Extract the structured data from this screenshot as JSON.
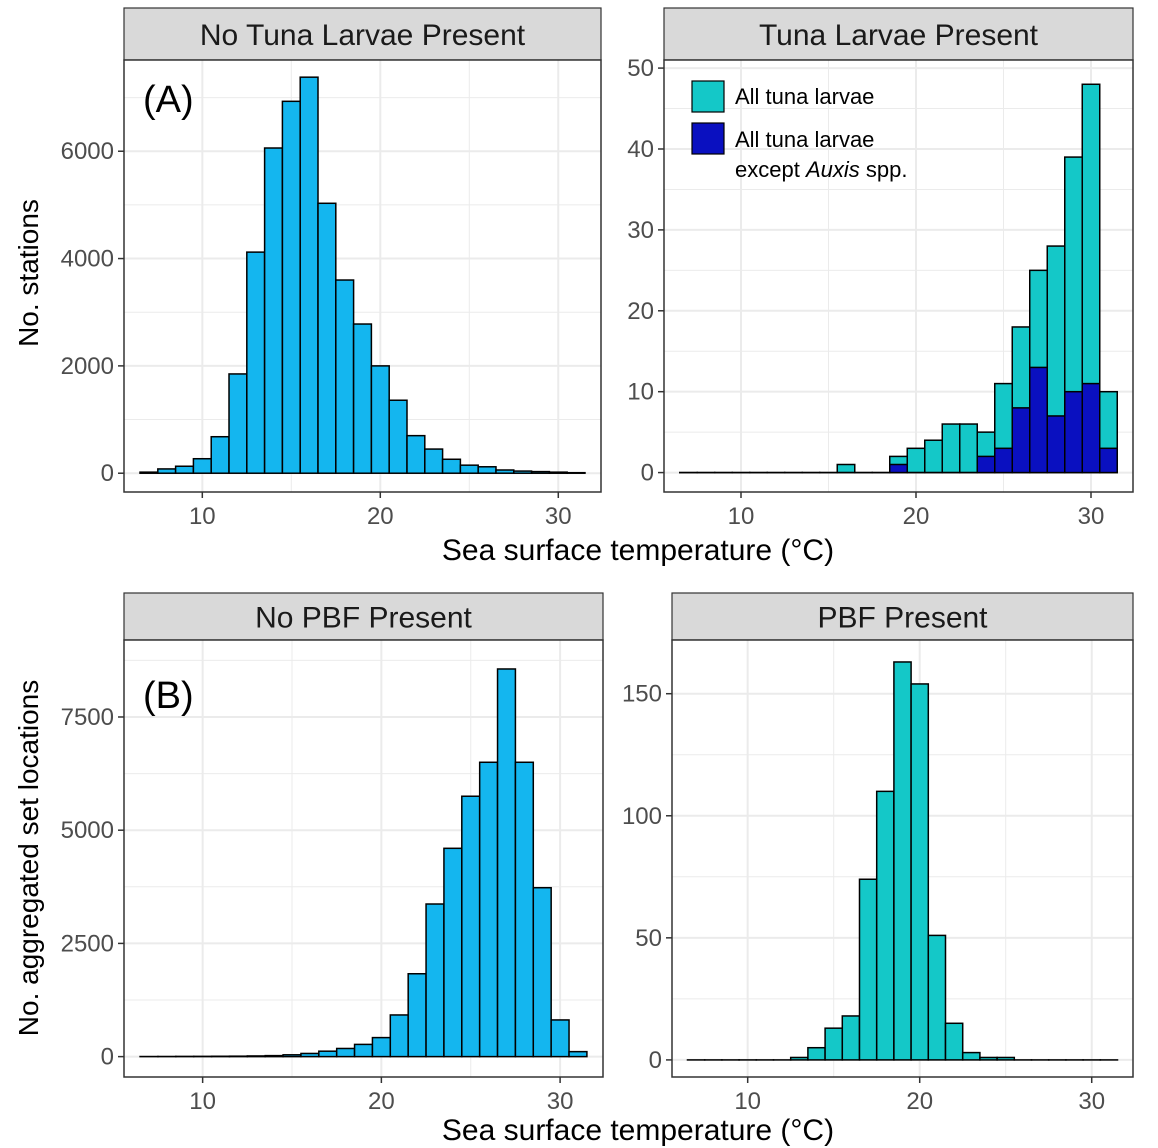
{
  "figure": {
    "colors": {
      "bar_blue": "#14b6ef",
      "bar_teal": "#14c8c8",
      "bar_navy": "#0a10c0",
      "strip_bg": "#d9d9d9",
      "grid": "#ebebeb",
      "axis_text": "#4d4d4d"
    },
    "row_a": {
      "panel_letter": "(A)",
      "ylabel": "No. stations",
      "xlabel": "Sea surface temperature (°C)"
    },
    "row_b": {
      "panel_letter": "(B)",
      "ylabel": "No. aggregated set locations",
      "xlabel": "Sea surface temperature (°C)"
    }
  },
  "chart_data": [
    {
      "id": "a_left",
      "type": "bar",
      "title": "No Tuna Larvae Present",
      "xlabel": "Sea surface temperature (°C)",
      "ylabel": "No. stations",
      "bin_width": 1,
      "x": [
        7,
        8,
        9,
        10,
        11,
        12,
        13,
        14,
        15,
        16,
        17,
        18,
        19,
        20,
        21,
        22,
        23,
        24,
        25,
        26,
        27,
        28,
        29,
        30,
        31
      ],
      "series": [
        {
          "color": "#14b6ef",
          "values": [
            20,
            80,
            130,
            270,
            680,
            1850,
            4120,
            6060,
            6930,
            7380,
            5030,
            3600,
            2780,
            2000,
            1360,
            700,
            450,
            260,
            150,
            120,
            60,
            40,
            30,
            20,
            10
          ]
        }
      ],
      "xlim": [
        5.6,
        32.4
      ],
      "ylim": [
        -350,
        7700
      ],
      "xticks": [
        10,
        20,
        30
      ],
      "yticks": [
        0,
        2000,
        4000,
        6000
      ],
      "grid": true
    },
    {
      "id": "a_right",
      "type": "bar",
      "title": "Tuna Larvae Present",
      "xlabel": "Sea surface temperature (°C)",
      "bin_width": 1,
      "x": [
        7,
        8,
        9,
        10,
        11,
        12,
        13,
        14,
        15,
        16,
        17,
        18,
        19,
        20,
        21,
        22,
        23,
        24,
        25,
        26,
        27,
        28,
        29,
        30,
        31
      ],
      "series": [
        {
          "name": "All tuna larvae",
          "color": "#14c8c8",
          "values": [
            0,
            0,
            0,
            0,
            0,
            0,
            0,
            0,
            0,
            1,
            0,
            0,
            2,
            3,
            4,
            6,
            6,
            5,
            11,
            18,
            25,
            28,
            39,
            48,
            10
          ]
        },
        {
          "name_parts": [
            "All tuna larvae",
            "except ",
            "Auxis",
            " spp."
          ],
          "color": "#0a10c0",
          "values": [
            0,
            0,
            0,
            0,
            0,
            0,
            0,
            0,
            0,
            0,
            0,
            0,
            1,
            0,
            0,
            0,
            0,
            2,
            3,
            8,
            13,
            7,
            10,
            11,
            3
          ]
        }
      ],
      "legend": {
        "position": "top-left",
        "title": ""
      },
      "xlim": [
        5.6,
        32.4
      ],
      "ylim": [
        -2.4,
        51
      ],
      "xticks": [
        10,
        20,
        30
      ],
      "yticks": [
        0,
        10,
        20,
        30,
        40,
        50
      ],
      "grid": true
    },
    {
      "id": "b_left",
      "type": "bar",
      "title": "No PBF Present",
      "xlabel": "Sea surface temperature (°C)",
      "ylabel": "No. aggregated set locations",
      "bin_width": 1,
      "x": [
        7,
        8,
        9,
        10,
        11,
        12,
        13,
        14,
        15,
        16,
        17,
        18,
        19,
        20,
        21,
        22,
        23,
        24,
        25,
        26,
        27,
        28,
        29,
        30,
        31
      ],
      "series": [
        {
          "color": "#14b6ef",
          "values": [
            2,
            3,
            5,
            6,
            8,
            10,
            15,
            22,
            40,
            70,
            120,
            180,
            270,
            420,
            920,
            1830,
            3370,
            4600,
            5750,
            6500,
            8560,
            6500,
            3730,
            810,
            110
          ]
        }
      ],
      "xlim": [
        5.6,
        32.4
      ],
      "ylim": [
        -450,
        9200
      ],
      "xticks": [
        10,
        20,
        30
      ],
      "yticks": [
        0,
        2500,
        5000,
        7500
      ],
      "grid": true
    },
    {
      "id": "b_right",
      "type": "bar",
      "title": "PBF Present",
      "xlabel": "Sea surface temperature (°C)",
      "bin_width": 1,
      "x": [
        7,
        8,
        9,
        10,
        11,
        12,
        13,
        14,
        15,
        16,
        17,
        18,
        19,
        20,
        21,
        22,
        23,
        24,
        25,
        26,
        27,
        28,
        29,
        30,
        31
      ],
      "series": [
        {
          "color": "#14c8c8",
          "values": [
            0,
            0,
            0,
            0,
            0,
            0,
            1,
            5,
            13,
            18,
            74,
            110,
            163,
            154,
            51,
            15,
            3,
            1,
            1,
            0,
            0,
            0,
            0,
            0,
            0
          ]
        }
      ],
      "xlim": [
        5.6,
        32.4
      ],
      "ylim": [
        -7,
        172
      ],
      "xticks": [
        10,
        20,
        30
      ],
      "yticks": [
        0,
        50,
        100,
        150
      ],
      "grid": true
    }
  ]
}
